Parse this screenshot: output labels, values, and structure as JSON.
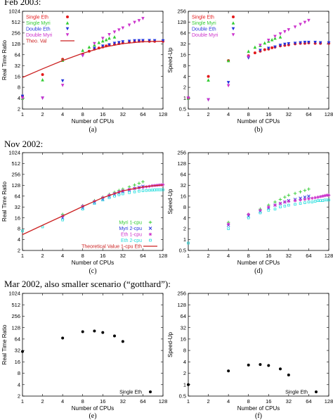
{
  "sections": [
    {
      "title": "Feb 2003:"
    },
    {
      "title": "Nov 2002:"
    },
    {
      "title": "Mar 2002, also smaller scenario (“gotthard”):"
    }
  ],
  "chart_data": [
    {
      "id": "a",
      "caption": "(a)",
      "type": "scatter",
      "xlabel": "Number of CPUs",
      "ylabel": "Real Time Ratio",
      "xscale": "log2",
      "yscale": "log2",
      "xlim": [
        1,
        128
      ],
      "ylim": [
        2,
        1024
      ],
      "xticks": [
        1,
        2,
        4,
        8,
        16,
        32,
        64,
        128
      ],
      "yticks": [
        2,
        4,
        8,
        16,
        32,
        64,
        128,
        256,
        512,
        1024
      ],
      "legend_position": "top-left",
      "series": [
        {
          "name": "Single Eth",
          "color": "#e41a1c",
          "marker": "circle",
          "x": [
            1,
            2,
            4,
            8,
            10,
            12,
            14,
            16,
            18,
            20,
            24,
            28,
            32,
            40,
            48,
            56,
            64,
            80,
            96,
            128
          ],
          "y": [
            4.5,
            18,
            48,
            66,
            80,
            92,
            98,
            105,
            112,
            118,
            124,
            130,
            136,
            143,
            148,
            150,
            152,
            150,
            150,
            150
          ]
        },
        {
          "name": "Single Myri",
          "color": "#33cc33",
          "marker": "triangle",
          "x": [
            1,
            2,
            4,
            8,
            10,
            12,
            14,
            16,
            18,
            20,
            24
          ],
          "y": [
            4,
            13,
            45,
            85,
            105,
            120,
            140,
            155,
            168,
            185,
            200
          ]
        },
        {
          "name": "Double Eth",
          "color": "#2233dd",
          "marker": "triangle-down",
          "x": [
            1,
            2,
            4,
            8,
            12,
            16,
            20,
            24,
            28,
            32,
            40,
            48,
            56,
            64,
            80,
            96,
            128
          ],
          "y": [
            4.5,
            4,
            12,
            60,
            95,
            110,
            120,
            132,
            138,
            145,
            150,
            155,
            156,
            157,
            157,
            156,
            155
          ]
        },
        {
          "name": "Double Myri",
          "color": "#cc33cc",
          "marker": "triangle-down",
          "x": [
            1,
            2,
            4,
            8,
            12,
            16,
            20,
            24,
            28,
            32,
            40,
            48,
            56,
            64
          ],
          "y": [
            4,
            4,
            9,
            60,
            130,
            180,
            230,
            270,
            310,
            350,
            420,
            500,
            560,
            640
          ]
        },
        {
          "name": "Theo. Val",
          "color": "#cc2222",
          "line": true,
          "x": [
            1,
            2,
            4,
            8,
            16,
            32,
            64,
            96,
            128
          ],
          "y": [
            15,
            26,
            44,
            70,
            102,
            130,
            146,
            150,
            151
          ]
        }
      ]
    },
    {
      "id": "b",
      "caption": "(b)",
      "type": "scatter",
      "xlabel": "Number of CPUs",
      "ylabel": "Speed-Up",
      "xscale": "log2",
      "yscale": "log2",
      "xlim": [
        1,
        128
      ],
      "ylim": [
        0.5,
        256
      ],
      "xticks": [
        1,
        2,
        4,
        8,
        16,
        32,
        64,
        128
      ],
      "yticks": [
        0.5,
        1,
        2,
        4,
        8,
        16,
        32,
        64,
        128,
        256
      ],
      "legend_position": "top-left",
      "series": [
        {
          "name": "Single Eth",
          "color": "#e41a1c",
          "marker": "circle",
          "x": [
            1,
            2,
            4,
            8,
            10,
            12,
            14,
            16,
            18,
            20,
            24,
            28,
            32,
            40,
            48,
            56,
            64,
            80,
            96,
            128
          ],
          "y": [
            1,
            4,
            11,
            15,
            18,
            20,
            22,
            23,
            25,
            26,
            28,
            29,
            30,
            32,
            33,
            33,
            34,
            33,
            33,
            33
          ]
        },
        {
          "name": "Single Myri",
          "color": "#33cc33",
          "marker": "triangle",
          "x": [
            1,
            2,
            4,
            8,
            10,
            12,
            14,
            16,
            18,
            20,
            24
          ],
          "y": [
            1,
            3.2,
            11,
            20,
            26,
            29,
            34,
            38,
            42,
            46,
            50
          ]
        },
        {
          "name": "Double Eth",
          "color": "#2233dd",
          "marker": "triangle-down",
          "x": [
            1,
            2,
            4,
            8,
            12,
            16,
            20,
            24,
            28,
            32,
            40,
            48,
            56,
            64,
            80,
            96,
            128
          ],
          "y": [
            1,
            0.9,
            2.7,
            13,
            21,
            24,
            26,
            29,
            31,
            32,
            33,
            34,
            35,
            35,
            35,
            34,
            34
          ]
        },
        {
          "name": "Double Myri",
          "color": "#cc33cc",
          "marker": "triangle-down",
          "x": [
            1,
            2,
            4,
            8,
            12,
            16,
            20,
            24,
            28,
            32,
            40,
            48,
            56,
            64
          ],
          "y": [
            1,
            0.9,
            2.2,
            14,
            29,
            40,
            51,
            60,
            69,
            78,
            93,
            110,
            125,
            142
          ]
        }
      ]
    },
    {
      "id": "c",
      "caption": "(c)",
      "type": "scatter",
      "xlabel": "Number of CPUs",
      "ylabel": "Real Time Ratio",
      "xscale": "log2",
      "yscale": "log2",
      "xlim": [
        1,
        128
      ],
      "ylim": [
        2,
        1024
      ],
      "xticks": [
        1,
        2,
        4,
        8,
        16,
        32,
        64,
        128
      ],
      "yticks": [
        2,
        4,
        8,
        16,
        32,
        64,
        128,
        256,
        512,
        1024
      ],
      "legend_position": "bottom-right",
      "series": [
        {
          "name": "Myri 1-cpu",
          "color": "#33cc33",
          "marker": "plus",
          "x": [
            4,
            8,
            12,
            16,
            20,
            24,
            28,
            32,
            40,
            48,
            56,
            64
          ],
          "y": [
            20,
            35,
            48,
            60,
            72,
            82,
            92,
            100,
            115,
            130,
            145,
            160
          ]
        },
        {
          "name": "Myri 2-cpu",
          "color": "#2233dd",
          "marker": "cross",
          "x": [
            4,
            8,
            12,
            16,
            20,
            24,
            28,
            32,
            40,
            48,
            56,
            64
          ],
          "y": [
            16,
            30,
            42,
            52,
            62,
            70,
            78,
            86,
            95,
            105,
            112,
            120
          ]
        },
        {
          "name": "Eth 1-cpu",
          "color": "#cc33cc",
          "marker": "star",
          "x": [
            4,
            8,
            12,
            16,
            20,
            24,
            28,
            32,
            40,
            48,
            56,
            64,
            72,
            80,
            88,
            96,
            104,
            112,
            120,
            128
          ],
          "y": [
            18,
            34,
            46,
            58,
            68,
            76,
            84,
            90,
            98,
            104,
            108,
            112,
            116,
            120,
            124,
            126,
            128,
            130,
            131,
            132
          ]
        },
        {
          "name": "Eth 2-cpu",
          "color": "#22dddd",
          "marker": "square",
          "x": [
            1,
            2,
            4,
            8,
            12,
            16,
            20,
            24,
            28,
            32,
            40,
            48,
            56,
            64,
            72,
            80,
            88,
            96,
            104,
            112,
            120,
            128
          ],
          "y": [
            7,
            9,
            14,
            28,
            40,
            50,
            58,
            64,
            70,
            74,
            80,
            84,
            88,
            90,
            92,
            93,
            94,
            95,
            96,
            96,
            96,
            96
          ]
        },
        {
          "name": "Theoretical Value 1-cpu Eth",
          "color": "#cc2222",
          "line": true,
          "x": [
            1,
            2,
            4,
            8,
            16,
            32,
            64,
            96,
            128
          ],
          "y": [
            5.5,
            10,
            18,
            33,
            58,
            90,
            115,
            125,
            130
          ]
        }
      ]
    },
    {
      "id": "d",
      "caption": "(d)",
      "type": "scatter",
      "xlabel": "Number of CPUs",
      "ylabel": "Speed-Up",
      "xscale": "log2",
      "yscale": "log2",
      "xlim": [
        1,
        128
      ],
      "ylim": [
        0.5,
        256
      ],
      "xticks": [
        1,
        2,
        4,
        8,
        16,
        32,
        64,
        128
      ],
      "yticks": [
        0.5,
        1,
        2,
        4,
        8,
        16,
        32,
        64,
        128,
        256
      ],
      "series": [
        {
          "name": "Myri 1-cpu",
          "color": "#33cc33",
          "marker": "plus",
          "x": [
            4,
            8,
            12,
            16,
            20,
            24,
            28,
            32,
            40,
            48,
            56,
            64
          ],
          "y": [
            3,
            5,
            7,
            9,
            11,
            13,
            15,
            17,
            19,
            21,
            23,
            25
          ]
        },
        {
          "name": "Myri 2-cpu",
          "color": "#2233dd",
          "marker": "cross",
          "x": [
            4,
            8,
            12,
            16,
            20,
            24,
            28,
            32,
            40,
            48,
            56,
            64
          ],
          "y": [
            2.5,
            4.5,
            6,
            7.5,
            9,
            10,
            11,
            12,
            13,
            14,
            15,
            16
          ]
        },
        {
          "name": "Eth 1-cpu",
          "color": "#cc33cc",
          "marker": "star",
          "x": [
            4,
            8,
            12,
            16,
            20,
            24,
            28,
            32,
            40,
            48,
            56,
            64,
            72,
            80,
            88,
            96,
            104,
            112,
            120,
            128
          ],
          "y": [
            2.7,
            5,
            6.5,
            8,
            9,
            10,
            11,
            11.5,
            12,
            12.5,
            13,
            13.5,
            14,
            14.5,
            15,
            15.5,
            16,
            16.5,
            17,
            17
          ]
        },
        {
          "name": "Eth 2-cpu",
          "color": "#22dddd",
          "marker": "square",
          "x": [
            1,
            4,
            8,
            12,
            16,
            20,
            24,
            28,
            32,
            40,
            48,
            56,
            64,
            72,
            80,
            88,
            96,
            104,
            112,
            120,
            128
          ],
          "y": [
            0.8,
            2,
            4,
            5.5,
            6.5,
            7,
            8,
            8.5,
            9,
            9.5,
            10,
            10.5,
            11,
            11,
            11.5,
            12,
            12,
            12,
            12.5,
            12.5,
            12.5
          ]
        }
      ]
    },
    {
      "id": "e",
      "caption": "(e)",
      "type": "scatter",
      "xlabel": "Number of CPUs",
      "ylabel": "Real Time Ratio",
      "xscale": "log2",
      "yscale": "log2",
      "xlim": [
        1,
        128
      ],
      "ylim": [
        2,
        1024
      ],
      "xticks": [
        1,
        2,
        4,
        8,
        16,
        32,
        64,
        128
      ],
      "yticks": [
        2,
        4,
        8,
        16,
        32,
        64,
        128,
        256,
        512,
        1024
      ],
      "legend_position": "bottom-right",
      "series": [
        {
          "name": "Single Eth",
          "color": "#000000",
          "marker": "circle",
          "x": [
            1,
            4,
            8,
            12,
            16,
            24,
            32
          ],
          "y": [
            30,
            68,
            100,
            104,
            95,
            77,
            55
          ]
        }
      ]
    },
    {
      "id": "f",
      "caption": "(f)",
      "type": "scatter",
      "xlabel": "Number of CPUs",
      "ylabel": "Speed-Up",
      "xscale": "log2",
      "yscale": "log2",
      "xlim": [
        1,
        128
      ],
      "ylim": [
        0.5,
        256
      ],
      "xticks": [
        1,
        2,
        4,
        8,
        16,
        32,
        64,
        128
      ],
      "yticks": [
        0.5,
        1,
        2,
        4,
        8,
        16,
        32,
        64,
        128,
        256
      ],
      "legend_position": "bottom-right",
      "series": [
        {
          "name": "Single Eth",
          "color": "#000000",
          "marker": "circle",
          "x": [
            1,
            4,
            8,
            12,
            16,
            24,
            32
          ],
          "y": [
            1,
            2.3,
            3.3,
            3.4,
            3.2,
            2.6,
            1.8
          ]
        }
      ]
    }
  ]
}
